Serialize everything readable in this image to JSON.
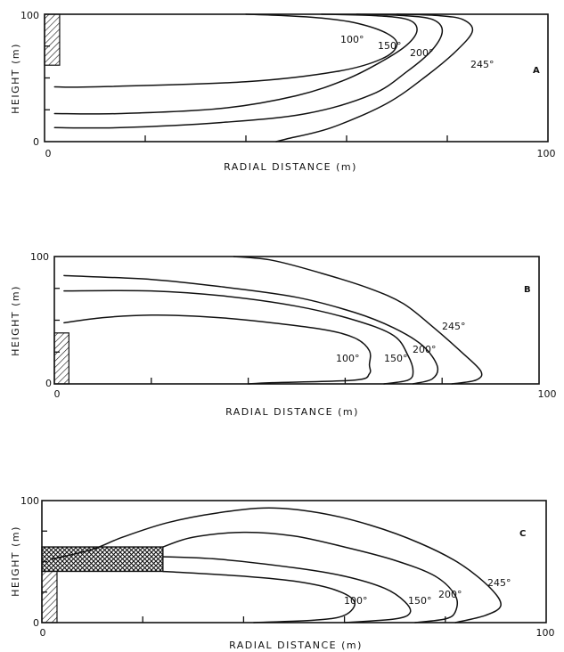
{
  "figure": {
    "panels": [
      {
        "id": "A",
        "letter": "A",
        "xlabel": "RADIAL DISTANCE (m)",
        "ylabel": "HEIGHT (m)",
        "x_tick_labels": [
          "0",
          "100"
        ],
        "y_tick_labels": [
          "0",
          "100"
        ],
        "contour_labels": [
          "100°",
          "150°",
          "200°",
          "245°"
        ]
      },
      {
        "id": "B",
        "letter": "B",
        "xlabel": "RADIAL DISTANCE (m)",
        "ylabel": "HEIGHT (m)",
        "x_tick_labels": [
          "0",
          "100"
        ],
        "y_tick_labels": [
          "0",
          "100"
        ],
        "contour_labels": [
          "100°",
          "150°",
          "200°",
          "245°"
        ]
      },
      {
        "id": "C",
        "letter": "C",
        "xlabel": "RADIAL DISTANCE (m)",
        "ylabel": "HEIGHT (m)",
        "x_tick_labels": [
          "0",
          "100"
        ],
        "y_tick_labels": [
          "0",
          "100"
        ],
        "contour_labels": [
          "100°",
          "150°",
          "200°",
          "245°"
        ]
      }
    ]
  },
  "chart_data": [
    {
      "type": "line",
      "panel": "A",
      "xlabel": "RADIAL DISTANCE (m)",
      "ylabel": "HEIGHT (m)",
      "xlim": [
        0,
        100
      ],
      "ylim": [
        0,
        100
      ],
      "grid": false,
      "hatched_block": {
        "x": [
          0,
          3
        ],
        "y": [
          60,
          100
        ]
      },
      "series": [
        {
          "name": "100°",
          "points": [
            [
              40,
              100
            ],
            [
              47,
              99
            ],
            [
              55,
              97
            ],
            [
              62,
              93
            ],
            [
              68,
              85
            ],
            [
              70,
              76
            ],
            [
              67,
              65
            ],
            [
              58,
              55
            ],
            [
              40,
              47
            ],
            [
              10,
              43
            ],
            [
              2,
              43
            ]
          ]
        },
        {
          "name": "150°",
          "points": [
            [
              55,
              100
            ],
            [
              65,
              99
            ],
            [
              72,
              96
            ],
            [
              74,
              88
            ],
            [
              72,
              76
            ],
            [
              67,
              63
            ],
            [
              60,
              49
            ],
            [
              50,
              36
            ],
            [
              35,
              26
            ],
            [
              15,
              22
            ],
            [
              2,
              22
            ]
          ]
        },
        {
          "name": "200°",
          "points": [
            [
              62,
              100
            ],
            [
              71,
              99
            ],
            [
              77,
              96
            ],
            [
              79,
              87
            ],
            [
              77,
              72
            ],
            [
              72,
              55
            ],
            [
              65,
              37
            ],
            [
              52,
              22
            ],
            [
              35,
              15
            ],
            [
              15,
              11
            ],
            [
              2,
              11
            ]
          ]
        },
        {
          "name": "245°",
          "points": [
            [
              70,
              100
            ],
            [
              78,
              99
            ],
            [
              83,
              96
            ],
            [
              85,
              87
            ],
            [
              82,
              72
            ],
            [
              76,
              52
            ],
            [
              68,
              30
            ],
            [
              57,
              11
            ],
            [
              48,
              2
            ],
            [
              46,
              0
            ]
          ]
        }
      ]
    },
    {
      "type": "line",
      "panel": "B",
      "xlabel": "RADIAL DISTANCE (m)",
      "ylabel": "HEIGHT (m)",
      "xlim": [
        0,
        100
      ],
      "ylim": [
        0,
        100
      ],
      "grid": false,
      "hatched_block": {
        "x": [
          0,
          3
        ],
        "y": [
          0,
          40
        ]
      },
      "series": [
        {
          "name": "100°",
          "points": [
            [
              2,
              48
            ],
            [
              10,
              52
            ],
            [
              20,
              54
            ],
            [
              30,
              53
            ],
            [
              40,
              50
            ],
            [
              55,
              43
            ],
            [
              62,
              36
            ],
            [
              65,
              26
            ],
            [
              65,
              15
            ],
            [
              65,
              8
            ],
            [
              62,
              3
            ],
            [
              45,
              1
            ],
            [
              40,
              0
            ]
          ]
        },
        {
          "name": "150°",
          "points": [
            [
              2,
              73
            ],
            [
              20,
              73
            ],
            [
              35,
              69
            ],
            [
              50,
              61
            ],
            [
              62,
              50
            ],
            [
              70,
              38
            ],
            [
              73,
              22
            ],
            [
              74,
              10
            ],
            [
              73,
              3
            ],
            [
              68,
              0
            ]
          ]
        },
        {
          "name": "200°",
          "points": [
            [
              2,
              85
            ],
            [
              20,
              82
            ],
            [
              35,
              76
            ],
            [
              50,
              68
            ],
            [
              62,
              56
            ],
            [
              70,
              44
            ],
            [
              76,
              30
            ],
            [
              79,
              14
            ],
            [
              78,
              4
            ],
            [
              74,
              0
            ]
          ]
        },
        {
          "name": "245°",
          "points": [
            [
              37,
              100
            ],
            [
              45,
              97
            ],
            [
              55,
              87
            ],
            [
              65,
              75
            ],
            [
              72,
              63
            ],
            [
              78,
              45
            ],
            [
              84,
              25
            ],
            [
              88,
              10
            ],
            [
              87,
              3
            ],
            [
              82,
              0
            ]
          ]
        }
      ]
    },
    {
      "type": "line",
      "panel": "C",
      "xlabel": "RADIAL DISTANCE (m)",
      "ylabel": "HEIGHT (m)",
      "xlim": [
        0,
        100
      ],
      "ylim": [
        0,
        100
      ],
      "grid": false,
      "hatched_block": {
        "x": [
          0,
          3
        ],
        "y": [
          0,
          42
        ]
      },
      "cross_hatched_block": {
        "x": [
          0,
          24
        ],
        "y": [
          42,
          62
        ]
      },
      "series": [
        {
          "name": "100°",
          "points": [
            [
              24,
              42
            ],
            [
              40,
              38
            ],
            [
              50,
              34
            ],
            [
              58,
              27
            ],
            [
              62,
              17
            ],
            [
              60,
              6
            ],
            [
              54,
              2
            ],
            [
              42,
              0
            ]
          ]
        },
        {
          "name": "150°",
          "points": [
            [
              24,
              54
            ],
            [
              35,
              52
            ],
            [
              50,
              45
            ],
            [
              60,
              38
            ],
            [
              68,
              28
            ],
            [
              72,
              17
            ],
            [
              73,
              8
            ],
            [
              70,
              3
            ],
            [
              60,
              0
            ]
          ]
        },
        {
          "name": "200°",
          "points": [
            [
              24,
              62
            ],
            [
              30,
              70
            ],
            [
              40,
              74
            ],
            [
              50,
              71
            ],
            [
              60,
              62
            ],
            [
              70,
              51
            ],
            [
              78,
              38
            ],
            [
              82,
              22
            ],
            [
              82,
              9
            ],
            [
              80,
              3
            ],
            [
              74,
              0
            ]
          ]
        },
        {
          "name": "245°",
          "points": [
            [
              2,
              52
            ],
            [
              10,
              60
            ],
            [
              16,
              70
            ],
            [
              25,
              82
            ],
            [
              35,
              90
            ],
            [
              45,
              94
            ],
            [
              55,
              90
            ],
            [
              65,
              80
            ],
            [
              75,
              65
            ],
            [
              83,
              48
            ],
            [
              89,
              28
            ],
            [
              91,
              14
            ],
            [
              88,
              6
            ],
            [
              82,
              0
            ]
          ]
        }
      ]
    }
  ]
}
